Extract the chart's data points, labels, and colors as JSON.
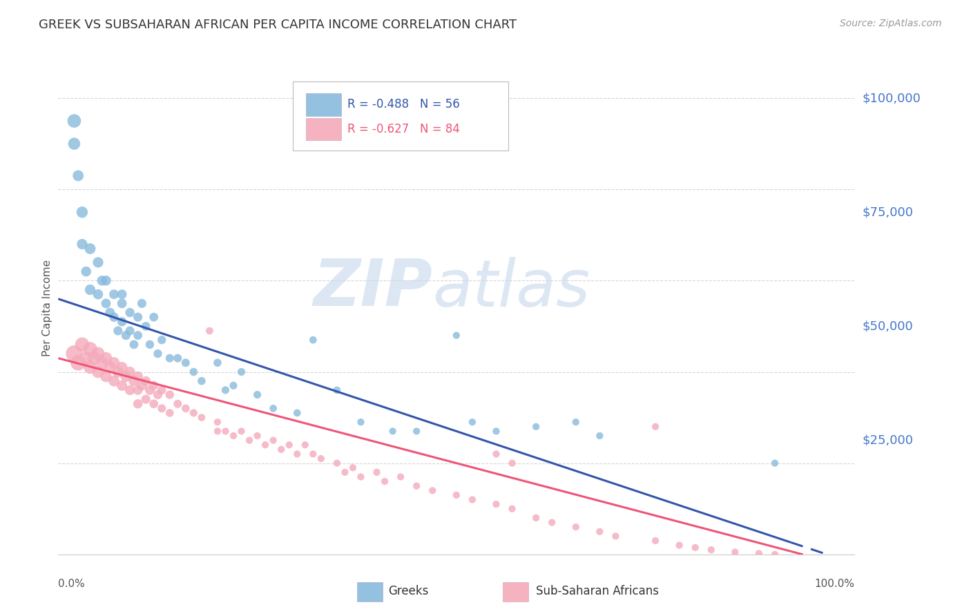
{
  "title": "GREEK VS SUBSAHARAN AFRICAN PER CAPITA INCOME CORRELATION CHART",
  "source": "Source: ZipAtlas.com",
  "ylabel": "Per Capita Income",
  "ytick_labels": [
    "$25,000",
    "$50,000",
    "$75,000",
    "$100,000"
  ],
  "ytick_values": [
    25000,
    50000,
    75000,
    100000
  ],
  "ylim": [
    0,
    108000
  ],
  "xlim": [
    0,
    1.0
  ],
  "title_color": "#333333",
  "source_color": "#999999",
  "ytick_color": "#4477cc",
  "xtick_color": "#555555",
  "grid_color": "#cccccc",
  "background_color": "#ffffff",
  "blue_color": "#88bbdd",
  "pink_color": "#f4aabb",
  "blue_line_color": "#3355aa",
  "pink_line_color": "#ee5577",
  "blue_intercept": 56000,
  "blue_slope": -58000,
  "pink_intercept": 43000,
  "pink_slope": -46000,
  "blue_points_x": [
    0.02,
    0.025,
    0.03,
    0.035,
    0.04,
    0.05,
    0.05,
    0.055,
    0.06,
    0.065,
    0.07,
    0.07,
    0.075,
    0.08,
    0.08,
    0.085,
    0.09,
    0.09,
    0.095,
    0.1,
    0.1,
    0.105,
    0.11,
    0.115,
    0.12,
    0.125,
    0.13,
    0.14,
    0.15,
    0.16,
    0.17,
    0.18,
    0.2,
    0.21,
    0.22,
    0.23,
    0.25,
    0.27,
    0.3,
    0.32,
    0.35,
    0.38,
    0.42,
    0.45,
    0.5,
    0.52,
    0.55,
    0.6,
    0.65,
    0.68,
    0.9,
    0.02,
    0.03,
    0.04,
    0.06,
    0.08
  ],
  "blue_points_y": [
    90000,
    83000,
    68000,
    62000,
    58000,
    64000,
    57000,
    60000,
    55000,
    53000,
    57000,
    52000,
    49000,
    55000,
    51000,
    48000,
    53000,
    49000,
    46000,
    52000,
    48000,
    55000,
    50000,
    46000,
    52000,
    44000,
    47000,
    43000,
    43000,
    42000,
    40000,
    38000,
    42000,
    36000,
    37000,
    40000,
    35000,
    32000,
    31000,
    47000,
    36000,
    29000,
    27000,
    27000,
    48000,
    29000,
    27000,
    28000,
    29000,
    26000,
    20000,
    95000,
    75000,
    67000,
    60000,
    57000
  ],
  "blue_sizes": [
    160,
    130,
    120,
    110,
    120,
    120,
    110,
    110,
    100,
    100,
    100,
    95,
    90,
    100,
    95,
    90,
    95,
    90,
    85,
    90,
    85,
    90,
    85,
    80,
    85,
    80,
    80,
    75,
    75,
    75,
    70,
    70,
    70,
    65,
    65,
    65,
    65,
    60,
    60,
    60,
    60,
    55,
    55,
    55,
    55,
    55,
    55,
    55,
    55,
    55,
    55,
    200,
    140,
    130,
    110,
    100
  ],
  "pink_points_x": [
    0.02,
    0.025,
    0.03,
    0.035,
    0.04,
    0.04,
    0.045,
    0.05,
    0.05,
    0.055,
    0.06,
    0.06,
    0.065,
    0.07,
    0.07,
    0.075,
    0.08,
    0.08,
    0.085,
    0.09,
    0.09,
    0.095,
    0.1,
    0.1,
    0.1,
    0.105,
    0.11,
    0.11,
    0.115,
    0.12,
    0.12,
    0.125,
    0.13,
    0.13,
    0.14,
    0.14,
    0.15,
    0.16,
    0.17,
    0.18,
    0.19,
    0.2,
    0.2,
    0.21,
    0.22,
    0.23,
    0.24,
    0.25,
    0.26,
    0.27,
    0.28,
    0.29,
    0.3,
    0.31,
    0.32,
    0.33,
    0.35,
    0.36,
    0.37,
    0.38,
    0.4,
    0.41,
    0.43,
    0.45,
    0.47,
    0.5,
    0.52,
    0.55,
    0.57,
    0.6,
    0.62,
    0.65,
    0.68,
    0.7,
    0.75,
    0.78,
    0.8,
    0.82,
    0.85,
    0.88,
    0.9,
    0.55,
    0.57,
    0.75
  ],
  "pink_points_y": [
    44000,
    42000,
    46000,
    43000,
    45000,
    41000,
    43000,
    44000,
    40000,
    42000,
    43000,
    39000,
    41000,
    42000,
    38000,
    40000,
    41000,
    37000,
    39000,
    40000,
    36000,
    38000,
    39000,
    36000,
    33000,
    37000,
    38000,
    34000,
    36000,
    37000,
    33000,
    35000,
    36000,
    32000,
    35000,
    31000,
    33000,
    32000,
    31000,
    30000,
    49000,
    29000,
    27000,
    27000,
    26000,
    27000,
    25000,
    26000,
    24000,
    25000,
    23000,
    24000,
    22000,
    24000,
    22000,
    21000,
    20000,
    18000,
    19000,
    17000,
    18000,
    16000,
    17000,
    15000,
    14000,
    13000,
    12000,
    11000,
    10000,
    8000,
    7000,
    6000,
    5000,
    4000,
    3000,
    2000,
    1500,
    1000,
    500,
    200,
    0,
    22000,
    20000,
    28000
  ],
  "pink_sizes": [
    300,
    260,
    220,
    200,
    220,
    180,
    200,
    190,
    160,
    170,
    160,
    140,
    150,
    140,
    130,
    140,
    130,
    120,
    130,
    120,
    110,
    120,
    110,
    100,
    95,
    110,
    100,
    90,
    100,
    90,
    85,
    90,
    80,
    75,
    80,
    70,
    75,
    70,
    65,
    60,
    60,
    55,
    55,
    55,
    55,
    55,
    55,
    55,
    55,
    55,
    55,
    55,
    55,
    55,
    55,
    55,
    55,
    55,
    55,
    55,
    55,
    55,
    55,
    55,
    55,
    55,
    55,
    55,
    55,
    55,
    55,
    55,
    55,
    55,
    55,
    55,
    55,
    55,
    55,
    55,
    55,
    55,
    55,
    55
  ]
}
